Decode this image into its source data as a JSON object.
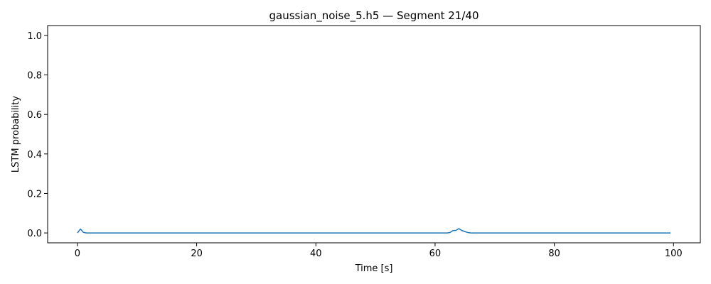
{
  "chart_data": {
    "type": "line",
    "title": "gaussian_noise_5.h5 — Segment 21/40",
    "xlabel": "Time [s]",
    "ylabel": "LSTM probability",
    "xlim": [
      -5,
      104.5
    ],
    "ylim": [
      -0.05,
      1.05
    ],
    "xticks": [
      0,
      20,
      40,
      60,
      80,
      100
    ],
    "yticks": [
      0.0,
      0.2,
      0.4,
      0.6,
      0.8,
      1.0
    ],
    "xtick_labels": [
      "0",
      "20",
      "40",
      "60",
      "80",
      "100"
    ],
    "ytick_labels": [
      "0.0",
      "0.2",
      "0.4",
      "0.6",
      "0.8",
      "1.0"
    ],
    "grid": false,
    "line_color": "#1f77b4",
    "series": [
      {
        "x": [
          0,
          0.5,
          1,
          1.5,
          2,
          5,
          10,
          20,
          30,
          40,
          50,
          55,
          60,
          62,
          62.5,
          63,
          63.5,
          64,
          64.5,
          65,
          65.5,
          66,
          70,
          80,
          90,
          99.5
        ],
        "y": [
          0.0,
          0.02,
          0.003,
          0.0,
          0.0,
          0.0,
          0.0,
          0.0,
          0.0,
          0.0,
          0.0,
          0.0,
          0.0,
          0.0,
          0.002,
          0.012,
          0.013,
          0.022,
          0.012,
          0.007,
          0.002,
          0.0,
          0.0,
          0.0,
          0.0,
          0.0
        ]
      }
    ]
  }
}
